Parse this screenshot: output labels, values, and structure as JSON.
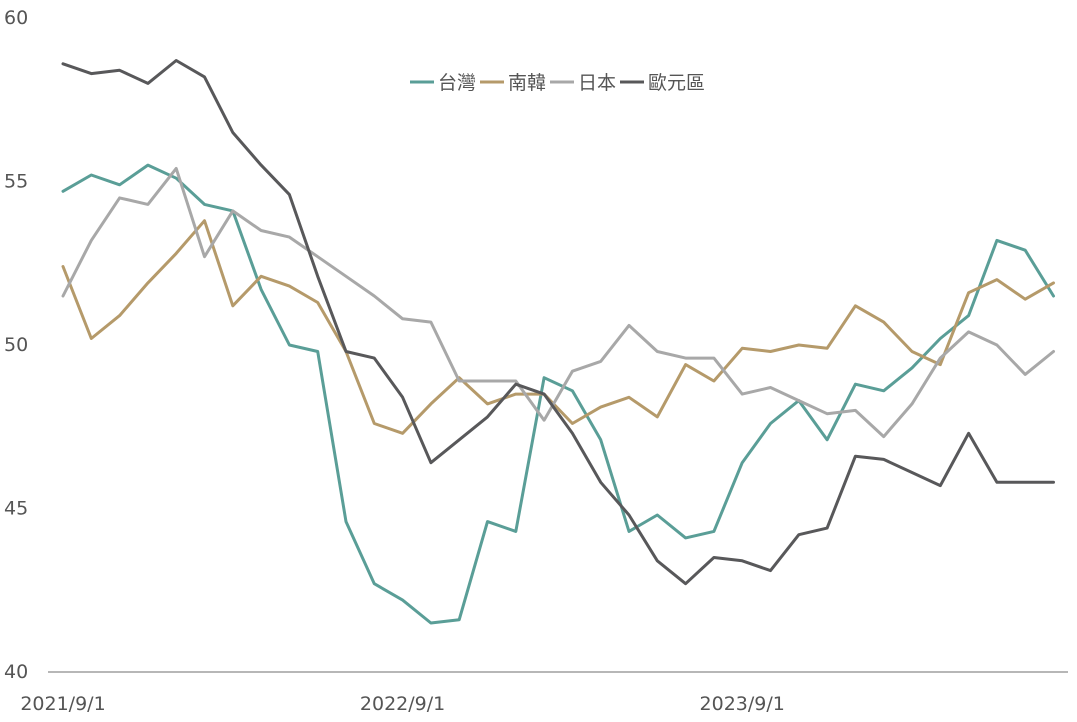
{
  "chart_data": {
    "type": "line",
    "title": "",
    "xlabel": "",
    "ylabel": "",
    "ylim": [
      40,
      60
    ],
    "yticks": [
      40,
      45,
      50,
      55,
      60
    ],
    "xtick_labels": [
      "2021/9/1",
      "2022/9/1",
      "2023/9/1"
    ],
    "grid": false,
    "legend_position": "top-center",
    "series": [
      {
        "name": "台灣",
        "color": "#5a9e97",
        "values": [
          54.7,
          55.2,
          54.9,
          55.5,
          55.1,
          54.3,
          54.1,
          51.7,
          50.0,
          49.8,
          44.6,
          42.7,
          42.2,
          41.5,
          41.6,
          44.6,
          44.3,
          49.0,
          48.6,
          47.1,
          44.3,
          44.8,
          44.1,
          44.3,
          46.4,
          47.6,
          48.3,
          47.1,
          48.8,
          48.6,
          49.3,
          50.2,
          50.9,
          53.2,
          52.9,
          51.5
        ]
      },
      {
        "name": "南韓",
        "color": "#b59a6a",
        "values": [
          52.4,
          50.2,
          50.9,
          51.9,
          52.8,
          53.8,
          51.2,
          52.1,
          51.8,
          51.3,
          49.8,
          47.6,
          47.3,
          48.2,
          49.0,
          48.2,
          48.5,
          48.5,
          47.6,
          48.1,
          48.4,
          47.8,
          49.4,
          48.9,
          49.9,
          49.8,
          50.0,
          49.9,
          51.2,
          50.7,
          49.8,
          49.4,
          51.6,
          52.0,
          51.4,
          51.9
        ]
      },
      {
        "name": "日本",
        "color": "#a8a8a8",
        "values": [
          51.5,
          53.2,
          54.5,
          54.3,
          55.4,
          52.7,
          54.1,
          53.5,
          53.3,
          52.7,
          52.1,
          51.5,
          50.8,
          50.7,
          48.9,
          48.9,
          48.9,
          47.7,
          49.2,
          49.5,
          50.6,
          49.8,
          49.6,
          49.6,
          48.5,
          48.7,
          48.3,
          47.9,
          48.0,
          47.2,
          48.2,
          49.6,
          50.4,
          50.0,
          49.1,
          49.8
        ]
      },
      {
        "name": "歐元區",
        "color": "#58585a",
        "values": [
          58.6,
          58.3,
          58.4,
          58.0,
          58.7,
          58.2,
          56.5,
          55.5,
          54.6,
          52.1,
          49.8,
          49.6,
          48.4,
          46.4,
          47.1,
          47.8,
          48.8,
          48.5,
          47.3,
          45.8,
          44.8,
          43.4,
          42.7,
          43.5,
          43.4,
          43.1,
          44.2,
          44.4,
          46.6,
          46.5,
          46.1,
          45.7,
          47.3,
          45.8,
          45.8,
          45.8
        ]
      }
    ]
  }
}
